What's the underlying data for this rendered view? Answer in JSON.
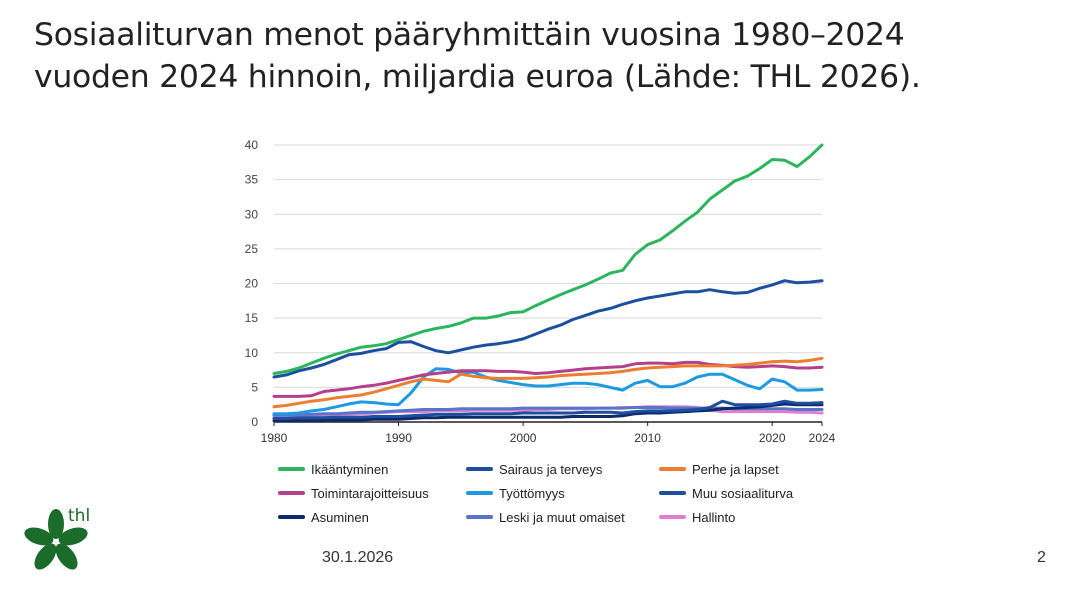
{
  "slide": {
    "title_line1": "Sosiaaliturvan menot pääryhmittäin vuosina 1980–2024",
    "title_line2": "vuoden 2024 hinnoin, miljardia euroa (Lähde: THL 2026).",
    "date": "30.1.2026",
    "page_number": "2",
    "logo_text": "thl"
  },
  "colors": {
    "green": "#2db55d",
    "darkblue": "#1d4f9f",
    "orange": "#ed7d31",
    "purple": "#b43f8c",
    "lightblue": "#1e9ae0",
    "navy": "#0e2a6b",
    "periwinkle": "#5a74c9",
    "pink": "#e07fd1",
    "logo_green": "#1b6b2a"
  },
  "chart_data": {
    "type": "line",
    "title": "",
    "xlabel": "",
    "ylabel": "",
    "xlim": [
      1980,
      2024
    ],
    "ylim": [
      0,
      40
    ],
    "y_ticks": [
      "0",
      "5",
      "10",
      "15",
      "20",
      "25",
      "30",
      "35",
      "40"
    ],
    "x_ticks": [
      "1980",
      "1990",
      "2000",
      "2010",
      "2020",
      "2024"
    ],
    "x_tick_values": [
      1980,
      1990,
      2000,
      2010,
      2020,
      2024
    ],
    "grid": "horizontal",
    "legend_placement": "bottom",
    "x": [
      1980,
      1981,
      1982,
      1983,
      1984,
      1985,
      1986,
      1987,
      1988,
      1989,
      1990,
      1991,
      1992,
      1993,
      1994,
      1995,
      1996,
      1997,
      1998,
      1999,
      2000,
      2001,
      2002,
      2003,
      2004,
      2005,
      2006,
      2007,
      2008,
      2009,
      2010,
      2011,
      2012,
      2013,
      2014,
      2015,
      2016,
      2017,
      2018,
      2019,
      2020,
      2021,
      2022,
      2023,
      2024
    ],
    "series": [
      {
        "name": "Ikääntyminen",
        "color": "#2db55d",
        "values": [
          7.0,
          7.3,
          7.8,
          8.5,
          9.2,
          9.8,
          10.3,
          10.8,
          11.0,
          11.3,
          11.9,
          12.5,
          13.1,
          13.5,
          13.8,
          14.3,
          15.0,
          15.0,
          15.3,
          15.8,
          15.9,
          16.8,
          17.6,
          18.4,
          19.1,
          19.8,
          20.6,
          21.5,
          21.9,
          24.2,
          25.6,
          26.3,
          27.6,
          29.0,
          30.3,
          32.2,
          33.5,
          34.8,
          35.5,
          36.6,
          37.9,
          37.8,
          36.9,
          38.3,
          40.0
        ]
      },
      {
        "name": "Sairaus ja terveys",
        "color": "#1d4f9f",
        "values": [
          6.5,
          6.8,
          7.4,
          7.8,
          8.3,
          9.0,
          9.7,
          9.9,
          10.3,
          10.6,
          11.5,
          11.6,
          10.9,
          10.3,
          10.0,
          10.4,
          10.8,
          11.1,
          11.3,
          11.6,
          12.0,
          12.7,
          13.4,
          14.0,
          14.8,
          15.4,
          16.0,
          16.4,
          17.0,
          17.5,
          17.9,
          18.2,
          18.5,
          18.8,
          18.8,
          19.1,
          18.8,
          18.6,
          18.7,
          19.3,
          19.8,
          20.4,
          20.1,
          20.2,
          20.4
        ]
      },
      {
        "name": "Perhe ja lapset",
        "color": "#ed7d31",
        "values": [
          2.2,
          2.4,
          2.7,
          3.0,
          3.2,
          3.5,
          3.7,
          3.9,
          4.3,
          4.8,
          5.3,
          5.8,
          6.2,
          6.0,
          5.8,
          6.9,
          6.6,
          6.4,
          6.3,
          6.3,
          6.3,
          6.4,
          6.5,
          6.7,
          6.8,
          6.9,
          7.0,
          7.1,
          7.3,
          7.6,
          7.8,
          7.9,
          8.0,
          8.1,
          8.1,
          8.1,
          8.1,
          8.2,
          8.3,
          8.5,
          8.7,
          8.8,
          8.7,
          8.9,
          9.2
        ]
      },
      {
        "name": "Toimintarajoitteisuus",
        "color": "#b43f8c",
        "values": [
          3.7,
          3.7,
          3.7,
          3.8,
          4.4,
          4.6,
          4.8,
          5.1,
          5.3,
          5.6,
          6.0,
          6.4,
          6.8,
          7.0,
          7.2,
          7.4,
          7.4,
          7.4,
          7.3,
          7.3,
          7.2,
          7.0,
          7.1,
          7.3,
          7.5,
          7.7,
          7.8,
          7.9,
          8.0,
          8.4,
          8.5,
          8.5,
          8.4,
          8.6,
          8.6,
          8.3,
          8.2,
          8.0,
          7.9,
          8.0,
          8.1,
          8.0,
          7.8,
          7.8,
          7.9
        ]
      },
      {
        "name": "Työttömyys",
        "color": "#1e9ae0",
        "values": [
          1.2,
          1.2,
          1.3,
          1.6,
          1.8,
          2.2,
          2.6,
          2.9,
          2.8,
          2.6,
          2.5,
          4.2,
          6.5,
          7.7,
          7.6,
          7.1,
          7.2,
          6.5,
          6.0,
          5.7,
          5.4,
          5.2,
          5.2,
          5.4,
          5.6,
          5.6,
          5.4,
          5.0,
          4.6,
          5.6,
          6.0,
          5.1,
          5.1,
          5.6,
          6.5,
          6.9,
          6.9,
          6.1,
          5.3,
          4.8,
          6.2,
          5.8,
          4.6,
          4.6,
          4.7
        ]
      },
      {
        "name": "Muu sosiaaliturva",
        "color": "#1d4f9f",
        "values": [
          0.5,
          0.5,
          0.6,
          0.6,
          0.6,
          0.7,
          0.7,
          0.7,
          0.8,
          0.8,
          0.8,
          0.9,
          1.0,
          1.1,
          1.1,
          1.1,
          1.2,
          1.2,
          1.2,
          1.2,
          1.3,
          1.3,
          1.3,
          1.3,
          1.3,
          1.4,
          1.4,
          1.4,
          1.3,
          1.5,
          1.6,
          1.6,
          1.6,
          1.7,
          1.8,
          2.1,
          3.0,
          2.5,
          2.5,
          2.5,
          2.6,
          3.0,
          2.7,
          2.7,
          2.8
        ]
      },
      {
        "name": "Asuminen",
        "color": "#0e2a6b",
        "values": [
          0.2,
          0.2,
          0.2,
          0.2,
          0.3,
          0.3,
          0.3,
          0.3,
          0.4,
          0.4,
          0.4,
          0.5,
          0.6,
          0.6,
          0.7,
          0.7,
          0.7,
          0.7,
          0.7,
          0.7,
          0.7,
          0.7,
          0.7,
          0.7,
          0.8,
          0.8,
          0.8,
          0.8,
          0.9,
          1.2,
          1.3,
          1.3,
          1.4,
          1.5,
          1.6,
          1.7,
          1.9,
          2.0,
          2.1,
          2.2,
          2.4,
          2.6,
          2.5,
          2.5,
          2.5
        ]
      },
      {
        "name": "Leski ja muut omaiset",
        "color": "#5a74c9",
        "values": [
          1.0,
          1.0,
          1.1,
          1.1,
          1.2,
          1.2,
          1.3,
          1.4,
          1.4,
          1.5,
          1.6,
          1.7,
          1.8,
          1.8,
          1.8,
          1.9,
          1.9,
          1.9,
          1.9,
          1.9,
          2.0,
          2.0,
          2.0,
          2.0,
          2.0,
          2.0,
          2.0,
          2.0,
          2.0,
          2.1,
          2.1,
          2.1,
          2.0,
          2.0,
          2.0,
          2.0,
          2.0,
          1.9,
          1.9,
          1.9,
          1.9,
          1.9,
          1.8,
          1.8,
          1.8
        ]
      },
      {
        "name": "Hallinto",
        "color": "#e07fd1",
        "values": [
          0.7,
          0.8,
          0.8,
          0.9,
          1.0,
          1.1,
          1.1,
          1.2,
          1.3,
          1.4,
          1.5,
          1.5,
          1.5,
          1.6,
          1.6,
          1.6,
          1.7,
          1.7,
          1.7,
          1.7,
          1.7,
          1.8,
          1.8,
          1.9,
          1.9,
          1.9,
          2.0,
          2.0,
          2.1,
          2.1,
          2.2,
          2.2,
          2.2,
          2.2,
          2.1,
          1.7,
          1.5,
          1.5,
          1.5,
          1.5,
          1.5,
          1.5,
          1.4,
          1.4,
          1.3
        ]
      }
    ]
  }
}
